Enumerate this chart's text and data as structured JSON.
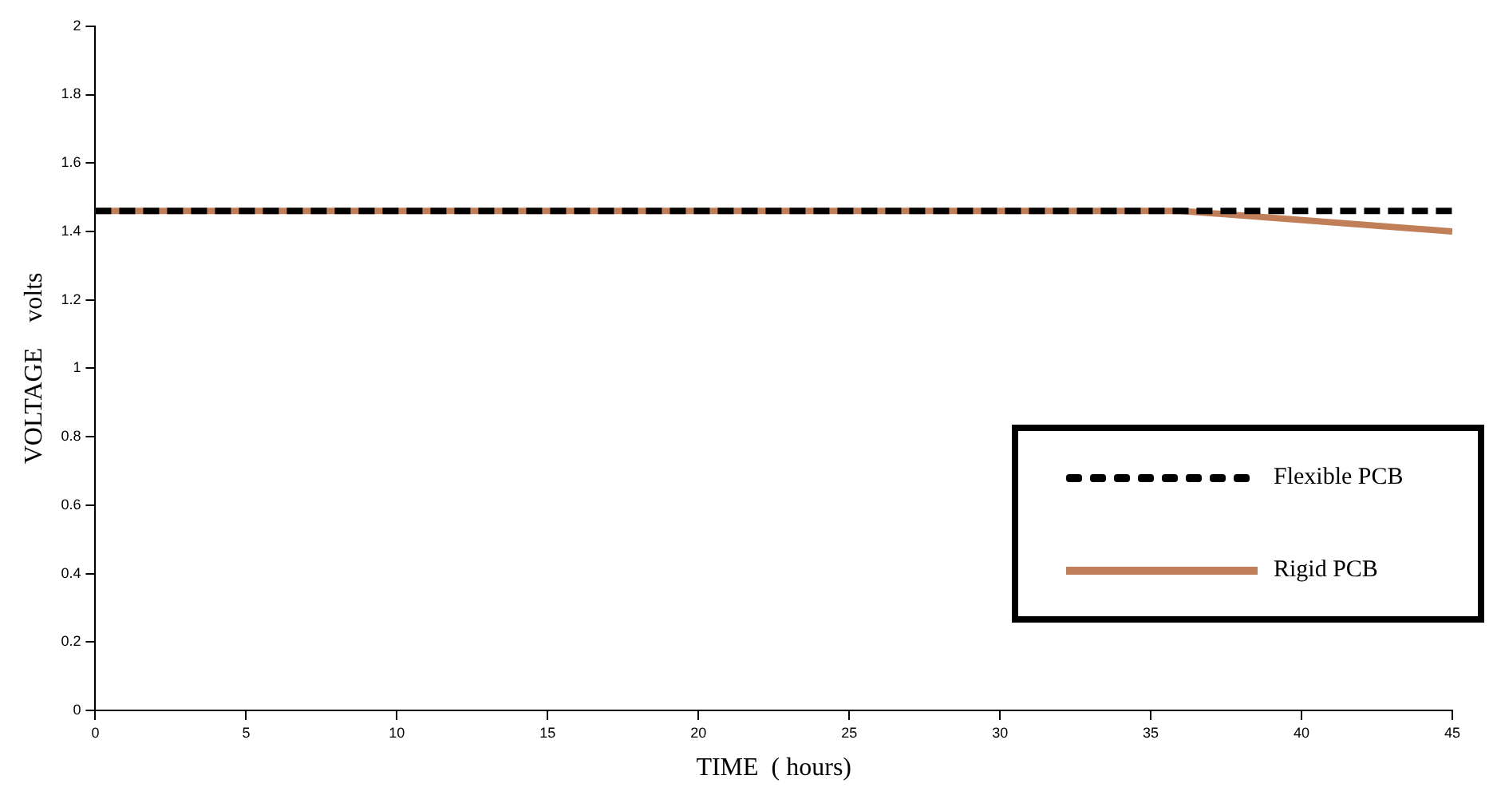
{
  "chart_data": {
    "type": "line",
    "xlabel": "TIME  ( hours)",
    "ylabel": "VOLTAGE    volts",
    "xlim": [
      0,
      45
    ],
    "xticks": [
      0,
      5,
      10,
      15,
      20,
      25,
      30,
      35,
      40,
      45
    ],
    "ylim": [
      0,
      2
    ],
    "yticks": [
      0,
      0.2,
      0.4,
      0.6,
      0.8,
      1,
      1.2,
      1.4,
      1.6,
      1.8,
      2
    ],
    "grid": false,
    "legend": "right",
    "marker": "none",
    "series": [
      {
        "name": "Flexible PCB",
        "color": "#000000",
        "line_style": "dashed",
        "x": [
          0,
          45
        ],
        "values": [
          1.46,
          1.46
        ]
      },
      {
        "name": "Rigid PCB",
        "color": "#c07f58",
        "line_style": "solid",
        "x": [
          0,
          36,
          45
        ],
        "values": [
          1.46,
          1.46,
          1.4
        ]
      }
    ]
  }
}
